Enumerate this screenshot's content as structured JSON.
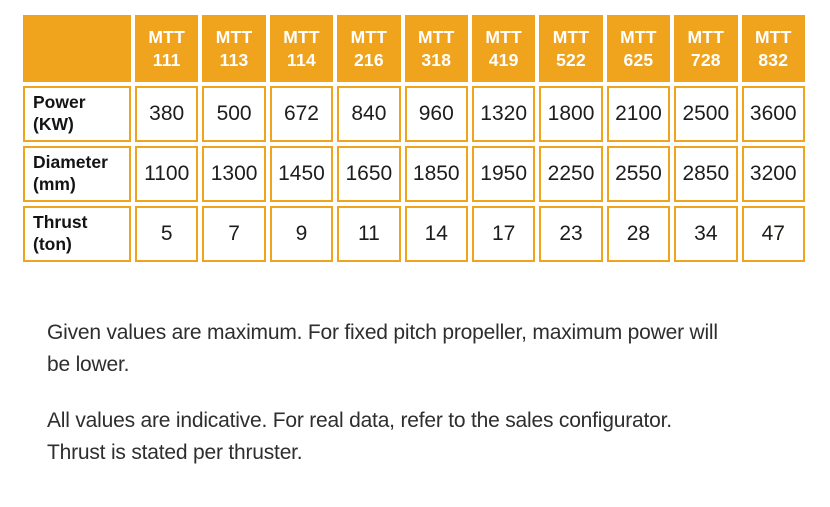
{
  "colors": {
    "accent_orange": "#F0A41E",
    "header_text": "#FFFFFF",
    "value_text": "#1D1D1B",
    "note_text": "#2E2E2E"
  },
  "table": {
    "corner_label": "",
    "columns": [
      {
        "series": "MTT",
        "model": "111"
      },
      {
        "series": "MTT",
        "model": "113"
      },
      {
        "series": "MTT",
        "model": "114"
      },
      {
        "series": "MTT",
        "model": "216"
      },
      {
        "series": "MTT",
        "model": "318"
      },
      {
        "series": "MTT",
        "model": "419"
      },
      {
        "series": "MTT",
        "model": "522"
      },
      {
        "series": "MTT",
        "model": "625"
      },
      {
        "series": "MTT",
        "model": "728"
      },
      {
        "series": "MTT",
        "model": "832"
      }
    ],
    "rows": [
      {
        "label": "Power",
        "unit": "(KW)",
        "values": [
          "380",
          "500",
          "672",
          "840",
          "960",
          "1320",
          "1800",
          "2100",
          "2500",
          "3600"
        ]
      },
      {
        "label": "Diameter",
        "unit": "(mm)",
        "values": [
          "1100",
          "1300",
          "1450",
          "1650",
          "1850",
          "1950",
          "2250",
          "2550",
          "2850",
          "3200"
        ]
      },
      {
        "label": "Thrust",
        "unit": "(ton)",
        "values": [
          "5",
          "7",
          "9",
          "11",
          "14",
          "17",
          "23",
          "28",
          "34",
          "47"
        ]
      }
    ]
  },
  "notes": [
    {
      "line1": "Given values are maximum. For fixed pitch propeller, maximum power will",
      "line2": "be lower."
    },
    {
      "line1": "All values are indicative. For real data, refer to the sales configurator.",
      "line2": "Thrust is stated per thruster."
    }
  ]
}
